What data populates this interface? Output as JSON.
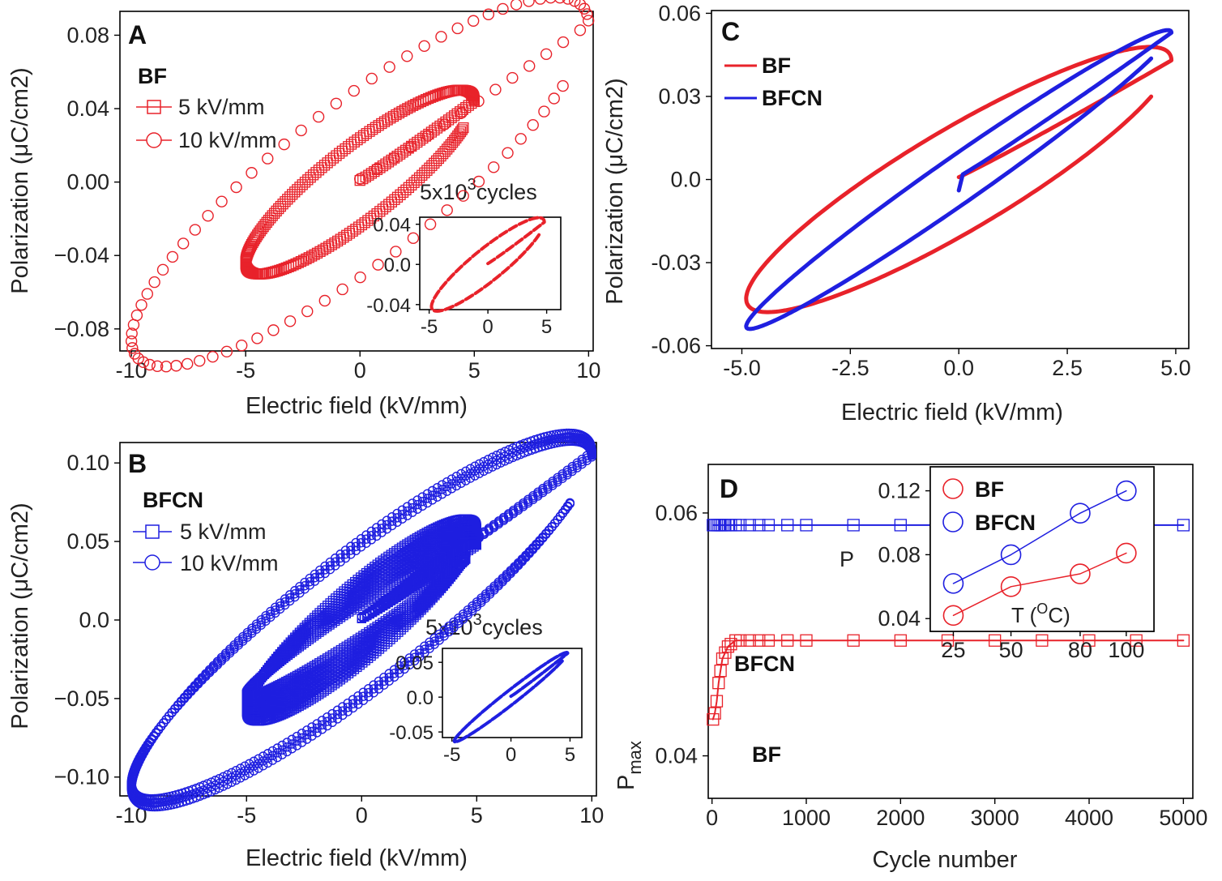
{
  "colors": {
    "bf": "#e8222a",
    "bfcn": "#1f1fe0"
  },
  "labels": {
    "xlabel_field": "Electric field (kV/mm)",
    "ylabel_polarization": "Polarization (μC/cm2)",
    "inset_caption_base": "5x10",
    "inset_caption_exp": "3",
    "inset_caption_tail": "cycles"
  },
  "chart_data": [
    {
      "id": "A",
      "type": "scatter",
      "panel_label": "A",
      "title": "BF",
      "xlabel": "Electric field (kV/mm)",
      "ylabel": "Polarization (μC/cm2)",
      "xlim": [
        -10.5,
        10.2
      ],
      "ylim": [
        -0.092,
        0.093
      ],
      "xticks": [
        -10,
        -5,
        0,
        5,
        10
      ],
      "xtick_labels": [
        "-10",
        "-5",
        "0",
        "5",
        "10"
      ],
      "yticks": [
        -0.08,
        -0.04,
        0.0,
        0.04,
        0.08
      ],
      "ytick_labels": [
        "−0.08",
        "−0.04",
        "0.00",
        "0.04",
        "0.08"
      ],
      "series": [
        {
          "name": "5 kV/mm",
          "marker": "square",
          "emax": 5,
          "pmax": 0.044,
          "pr": 0.024
        },
        {
          "name": "10 kV/mm",
          "marker": "circle",
          "emax": 10,
          "pmax": 0.086,
          "pr": 0.052
        }
      ],
      "inset": {
        "title": "5x10^3 cycles",
        "xlim": [
          -5.8,
          6.2
        ],
        "ylim": [
          -0.045,
          0.047
        ],
        "xticks": [
          -5,
          0,
          5
        ],
        "xtick_labels": [
          "-5",
          "0",
          "5"
        ],
        "yticks": [
          -0.04,
          0.0,
          0.04
        ],
        "ytick_labels": [
          "-0.04",
          "0.0",
          "0.04"
        ],
        "loop": {
          "emax": 4.8,
          "pmax": 0.042,
          "pr": 0.02
        }
      }
    },
    {
      "id": "B",
      "type": "scatter",
      "panel_label": "B",
      "title": "BFCN",
      "xlabel": "Electric field (kV/mm)",
      "ylabel": "Polarization (μC/cm2)",
      "xlim": [
        -10.5,
        10.2
      ],
      "ylim": [
        -0.112,
        0.113
      ],
      "xticks": [
        -10,
        -5,
        0,
        5,
        10
      ],
      "xtick_labels": [
        "-10",
        "-5",
        "0",
        "5",
        "10"
      ],
      "yticks": [
        -0.1,
        -0.05,
        0.0,
        0.05,
        0.1
      ],
      "ytick_labels": [
        "−0.10",
        "−0.05",
        "0.0",
        "0.05",
        "0.10"
      ],
      "series": [
        {
          "name": "5 kV/mm",
          "marker": "square",
          "emax": 5,
          "pmax": 0.058,
          "pr": 0.028
        },
        {
          "name": "10 kV/mm",
          "marker": "circle",
          "emax": 10,
          "pmax": 0.107,
          "pr": 0.052
        }
      ],
      "inset": {
        "title": "5x10^3 cycles",
        "xlim": [
          -5.8,
          6.0
        ],
        "ylim": [
          -0.058,
          0.07
        ],
        "xticks": [
          -5,
          0,
          5
        ],
        "xtick_labels": [
          "-5",
          "0",
          "5"
        ],
        "yticks": [
          -0.05,
          0.0,
          0.05
        ],
        "ytick_labels": [
          "-0.05",
          "0.0",
          "0.05"
        ],
        "loop": {
          "emax": 4.8,
          "pmax": 0.063,
          "pr": 0.012
        }
      }
    },
    {
      "id": "C",
      "type": "line",
      "panel_label": "C",
      "xlabel": "Electric field (kV/mm)",
      "ylabel": "Polarization (μC/cm2)",
      "xlim": [
        -5.7,
        5.3
      ],
      "ylim": [
        -0.061,
        0.061
      ],
      "xticks": [
        -5.0,
        -2.5,
        0.0,
        2.5,
        5.0
      ],
      "xtick_labels": [
        "-5.0",
        "-2.5",
        "0.0",
        "2.5",
        "5.0"
      ],
      "yticks": [
        -0.06,
        -0.03,
        0.0,
        0.03,
        0.06
      ],
      "ytick_labels": [
        "-0.06",
        "-0.03",
        "0.0",
        "0.03",
        "0.06"
      ],
      "series": [
        {
          "name": "BF",
          "emax": 4.9,
          "pmax": 0.043,
          "pr": 0.021
        },
        {
          "name": "BFCN",
          "emax": 4.9,
          "pmax": 0.053,
          "pr": 0.01
        }
      ]
    },
    {
      "id": "D",
      "type": "line",
      "panel_label": "D",
      "xlabel": "Cycle number",
      "ylabel": "P",
      "ylabel_sub": "max",
      "xlim": [
        -40,
        5100
      ],
      "ylim": [
        0.0365,
        0.064
      ],
      "xticks": [
        0,
        1000,
        2000,
        3000,
        4000,
        5000
      ],
      "xtick_labels": [
        "0",
        "1000",
        "2000",
        "3000",
        "4000",
        "5000"
      ],
      "yticks": [
        0.04,
        0.06
      ],
      "ytick_labels": [
        "0.04",
        "0.06"
      ],
      "series": [
        {
          "name": "BFCN",
          "marker": "square",
          "x": [
            10,
            30,
            50,
            70,
            90,
            110,
            140,
            170,
            200,
            250,
            300,
            400,
            500,
            600,
            800,
            1000,
            1500,
            2000,
            2500,
            3000,
            3500,
            4000,
            4500,
            5000
          ],
          "y": [
            0.059,
            0.059,
            0.059,
            0.059,
            0.059,
            0.059,
            0.059,
            0.059,
            0.059,
            0.059,
            0.059,
            0.059,
            0.059,
            0.059,
            0.059,
            0.059,
            0.059,
            0.059,
            0.059,
            0.059,
            0.059,
            0.059,
            0.059,
            0.059
          ]
        },
        {
          "name": "BF",
          "marker": "square",
          "x": [
            10,
            30,
            50,
            70,
            90,
            110,
            140,
            170,
            200,
            250,
            300,
            400,
            500,
            600,
            800,
            1000,
            1500,
            2000,
            2500,
            3000,
            3500,
            4000,
            4500,
            5000
          ],
          "y": [
            0.043,
            0.0435,
            0.0445,
            0.046,
            0.047,
            0.048,
            0.0485,
            0.049,
            0.0492,
            0.0495,
            0.0495,
            0.0495,
            0.0495,
            0.0495,
            0.0495,
            0.0495,
            0.0495,
            0.0495,
            0.0495,
            0.0495,
            0.0495,
            0.0495,
            0.0495,
            0.0495
          ]
        }
      ],
      "inset": {
        "xlabel": "T (oC)",
        "xlabel_base": "T (",
        "xlabel_sup": "O",
        "xlabel_tail": "C)",
        "ylabel": "P",
        "xlim": [
          15,
          112
        ],
        "ylim": [
          0.032,
          0.135
        ],
        "xticks": [
          25,
          50,
          80,
          100
        ],
        "xtick_labels": [
          "25",
          "50",
          "80",
          "100"
        ],
        "yticks": [
          0.04,
          0.08,
          0.12
        ],
        "ytick_labels": [
          "0.04",
          "0.08",
          "0.12"
        ],
        "series": [
          {
            "name": "BF",
            "marker": "circle",
            "x": [
              25,
              50,
              80,
              100
            ],
            "y": [
              0.042,
              0.06,
              0.068,
              0.081
            ]
          },
          {
            "name": "BFCN",
            "marker": "circle",
            "x": [
              25,
              50,
              80,
              100
            ],
            "y": [
              0.062,
              0.08,
              0.106,
              0.12
            ]
          }
        ]
      }
    }
  ]
}
